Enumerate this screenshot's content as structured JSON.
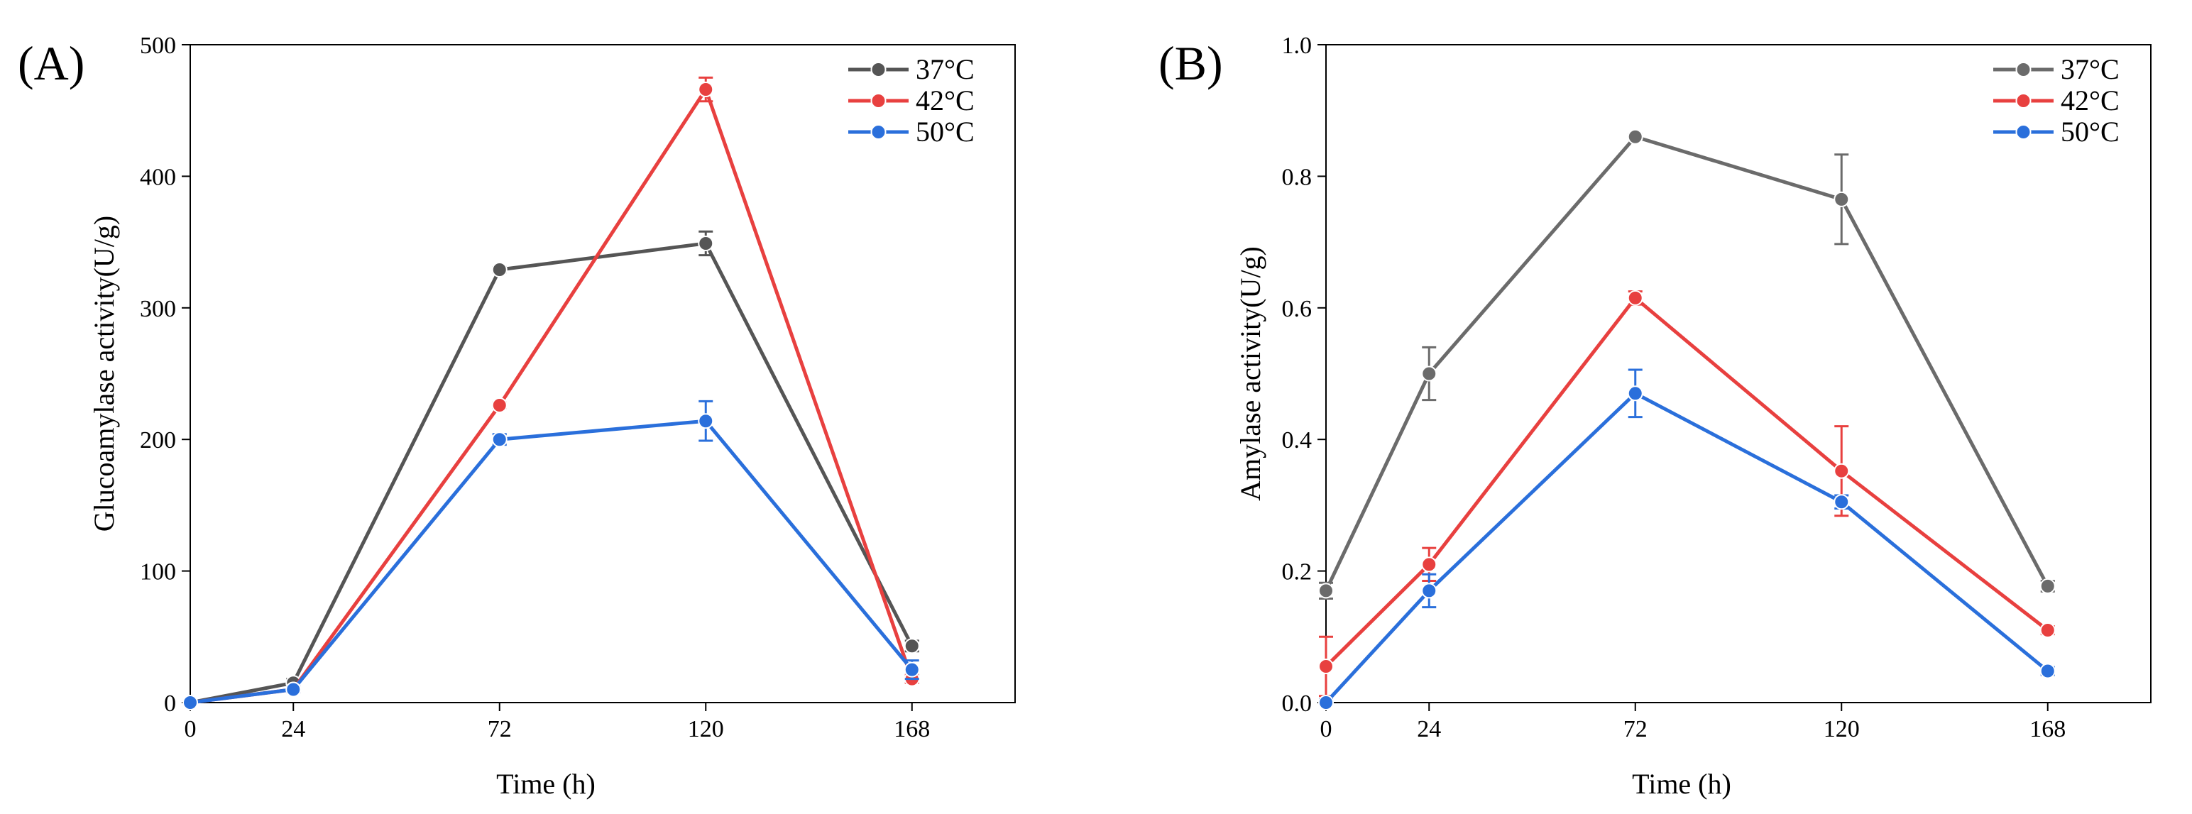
{
  "chart_data": [
    {
      "panel_label": "(A)",
      "type": "line",
      "xlabel": "Time (h)",
      "ylabel": "Glucoamylase activity(U/g)",
      "x": [
        0,
        24,
        72,
        120,
        168
      ],
      "xticks": [
        0,
        24,
        72,
        120,
        168
      ],
      "xtick_labels": [
        "0",
        "24",
        "72",
        "120",
        "168"
      ],
      "xlim": [
        0,
        192
      ],
      "ylim": [
        0,
        500
      ],
      "yticks": [
        0,
        100,
        200,
        300,
        400,
        500
      ],
      "ytick_labels": [
        "0",
        "100",
        "200",
        "300",
        "400",
        "500"
      ],
      "legend": "top-right",
      "grid": false,
      "series": [
        {
          "name": "37°C",
          "color": "#555555",
          "values": [
            0,
            15,
            329,
            349,
            43
          ],
          "errors": [
            1,
            3,
            2,
            9,
            4
          ]
        },
        {
          "name": "42°C",
          "color": "#e8403f",
          "values": [
            0,
            10,
            226,
            466,
            18
          ],
          "errors": [
            1,
            2,
            2,
            9,
            3
          ]
        },
        {
          "name": "50°C",
          "color": "#2a6fdb",
          "values": [
            0,
            10,
            200,
            214,
            25
          ],
          "errors": [
            1,
            2,
            4,
            15,
            7
          ]
        }
      ]
    },
    {
      "panel_label": "(B)",
      "type": "line",
      "xlabel": "Time (h)",
      "ylabel": "Amylase activity(U/g)",
      "x": [
        0,
        24,
        72,
        120,
        168
      ],
      "xticks": [
        0,
        24,
        72,
        120,
        168
      ],
      "xtick_labels": [
        "0",
        "24",
        "72",
        "120",
        "168"
      ],
      "xlim": [
        0,
        192
      ],
      "ylim": [
        0,
        1.0
      ],
      "yticks": [
        0,
        0.2,
        0.4,
        0.6,
        0.8,
        1.0
      ],
      "ytick_labels": [
        "0.0",
        "0.2",
        "0.4",
        "0.6",
        "0.8",
        "1.0"
      ],
      "legend": "top-right",
      "grid": false,
      "series": [
        {
          "name": "37°C",
          "color": "#6b6b6b",
          "values": [
            0.17,
            0.5,
            0.86,
            0.765,
            0.177
          ],
          "errors": [
            0.012,
            0.04,
            0.004,
            0.068,
            0.008
          ]
        },
        {
          "name": "42°C",
          "color": "#e8403f",
          "values": [
            0.055,
            0.21,
            0.615,
            0.352,
            0.11
          ],
          "errors": [
            0.045,
            0.025,
            0.01,
            0.068,
            0.006
          ]
        },
        {
          "name": "50°C",
          "color": "#2a6fdb",
          "values": [
            0.0,
            0.17,
            0.47,
            0.305,
            0.048
          ],
          "errors": [
            0.005,
            0.025,
            0.036,
            0.01,
            0.006
          ]
        }
      ]
    }
  ]
}
